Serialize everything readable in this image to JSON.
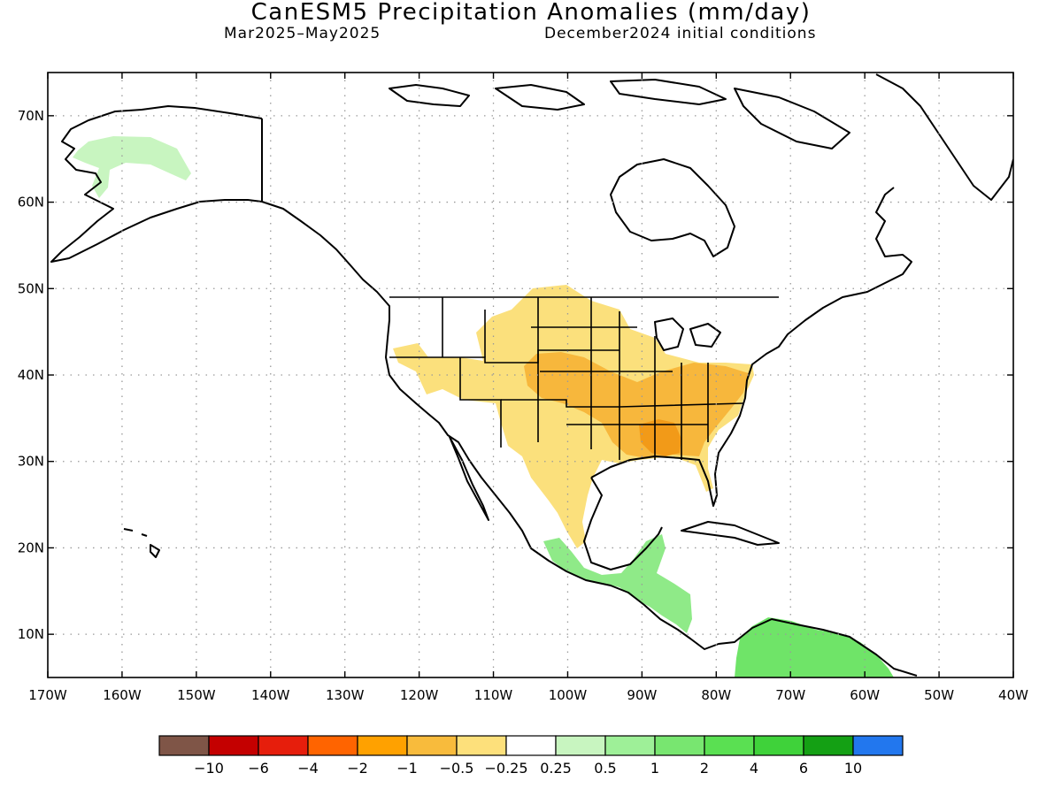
{
  "title": "CanESM5 Precipitation Anomalies (mm/day)",
  "period": "Mar2025–May2025",
  "init": "December2024 initial conditions",
  "map": {
    "lon_range": [
      -170,
      -40
    ],
    "lat_range": [
      5,
      75
    ],
    "lat_ticks": [
      {
        "value": 70,
        "label": "70N"
      },
      {
        "value": 60,
        "label": "60N"
      },
      {
        "value": 50,
        "label": "50N"
      },
      {
        "value": 40,
        "label": "40N"
      },
      {
        "value": 30,
        "label": "30N"
      },
      {
        "value": 20,
        "label": "20N"
      },
      {
        "value": 10,
        "label": "10N"
      }
    ],
    "lon_ticks": [
      {
        "value": -170,
        "label": "170W"
      },
      {
        "value": -160,
        "label": "160W"
      },
      {
        "value": -150,
        "label": "150W"
      },
      {
        "value": -140,
        "label": "140W"
      },
      {
        "value": -130,
        "label": "130W"
      },
      {
        "value": -120,
        "label": "120W"
      },
      {
        "value": -110,
        "label": "110W"
      },
      {
        "value": -100,
        "label": "100W"
      },
      {
        "value": -90,
        "label": "90W"
      },
      {
        "value": -80,
        "label": "80W"
      },
      {
        "value": -70,
        "label": "70W"
      },
      {
        "value": -60,
        "label": "60W"
      },
      {
        "value": -50,
        "label": "50W"
      },
      {
        "value": -40,
        "label": "40W"
      }
    ],
    "gridlines": "dotted",
    "anomaly_regions": [
      {
        "name": "alaska-wet",
        "category": "0.25 to 0.5",
        "color": "#c8f5c0"
      },
      {
        "name": "central-us-dry",
        "category": "-0.5 to -0.25",
        "color": "#fbe07c"
      },
      {
        "name": "central-us-dry-core",
        "category": "-1 to -0.5",
        "color": "#f7b73c"
      },
      {
        "name": "southeast-us-dry-peak",
        "category": "-2 to -1",
        "color": "#f29a18"
      },
      {
        "name": "central-america-wet",
        "category": "0.5 to 1",
        "color": "#8fea88"
      },
      {
        "name": "northern-south-america-wet",
        "category": "1 to 2",
        "color": "#6fe468"
      }
    ]
  },
  "colorbar": {
    "colors": [
      "#7f5547",
      "#c40000",
      "#e61e0c",
      "#ff6400",
      "#ffa100",
      "#f8bb3c",
      "#fde07b",
      "#ffffff",
      "#c8f5c0",
      "#9ef098",
      "#78e670",
      "#5ae052",
      "#3fd23a",
      "#14a014",
      "#2277ee"
    ],
    "labels": [
      "−10",
      "−6",
      "−4",
      "−2",
      "−1",
      "−0.5",
      "−0.25",
      "0.25",
      "0.5",
      "1",
      "2",
      "4",
      "6",
      "10"
    ]
  }
}
